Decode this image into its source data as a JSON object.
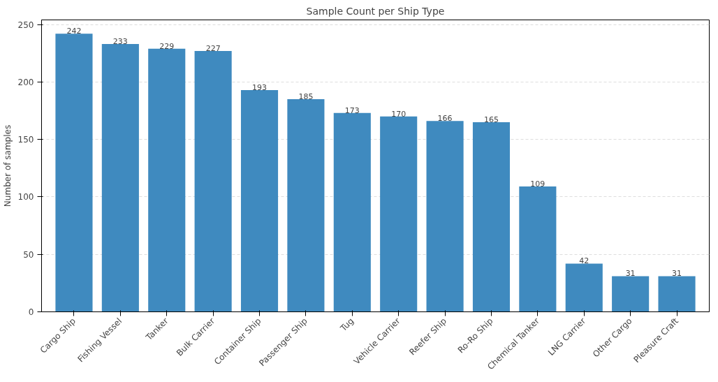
{
  "chart_data": {
    "type": "bar",
    "title": "Sample Count per Ship Type",
    "ylabel": "Number of samples",
    "categories": [
      "Cargo Ship",
      "Fishing Vessel",
      "Tanker",
      "Bulk Carrier",
      "Container Ship",
      "Passenger Ship",
      "Tug",
      "Vehicle Carrier",
      "Reefer Ship",
      "Ro-Ro Ship",
      "Chemical Tanker",
      "LNG Carrier",
      "Other Cargo",
      "Pleasure Craft"
    ],
    "values": [
      242,
      233,
      229,
      227,
      193,
      185,
      173,
      170,
      166,
      165,
      109,
      42,
      31,
      31
    ],
    "color": "#3f8abf",
    "data_labels": true,
    "ylim": [
      0,
      254
    ],
    "yticks": [
      0,
      50,
      100,
      150,
      200,
      250
    ],
    "grid": "y"
  }
}
